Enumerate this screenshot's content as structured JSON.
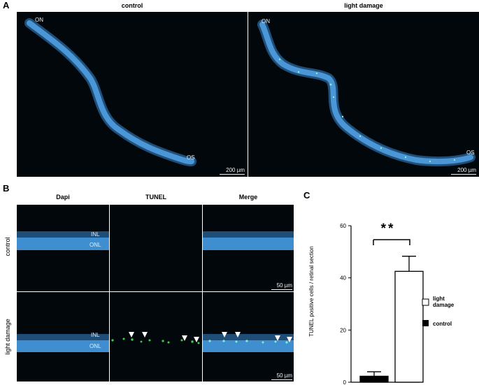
{
  "panel_a": {
    "letter": "A",
    "col_left": "control",
    "col_right": "light damage",
    "left_on": "ON",
    "left_os": "OS",
    "left_scale": "200 µm",
    "right_on": "ON",
    "right_os": "OS",
    "right_scale": "200 µm"
  },
  "panel_b": {
    "letter": "B",
    "col_dapi": "Dapi",
    "col_tunel": "TUNEL",
    "col_merge": "Merge",
    "row_control": "control",
    "row_light": "light damage",
    "inl": "INL",
    "onl": "ONL",
    "scale": "50 µm"
  },
  "panel_c": {
    "letter": "C",
    "significance": "**",
    "legend_light": "light damage",
    "legend_control": "control"
  },
  "colors": {
    "nuclei": "#3f8fd0",
    "tunel": "#35d24a",
    "background": "#02070c"
  },
  "chart_data": {
    "type": "bar",
    "categories": [
      "control",
      "light damage"
    ],
    "values": [
      2.3,
      42.5
    ],
    "errors": [
      1.7,
      5.8
    ],
    "ylabel": "TUNEL positive cells / retinal section",
    "xlabel": "",
    "ylim": [
      0,
      60
    ],
    "yticks": [
      0,
      20,
      40,
      60
    ],
    "fills": [
      "#000000",
      "#ffffff"
    ],
    "legend_position": "right"
  }
}
